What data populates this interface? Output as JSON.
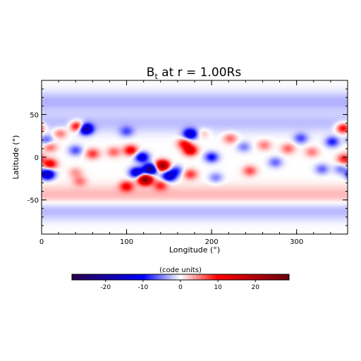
{
  "chart_data": {
    "type": "heatmap",
    "title": {
      "prefix": "B",
      "subscript": "t",
      "suffix": " at r = 1.00Rs"
    },
    "xlabel": "Longitude (°)",
    "ylabel": "Latitude (°)",
    "xlim": [
      0,
      360
    ],
    "ylim": [
      -90,
      90
    ],
    "xticks": [
      0,
      100,
      200,
      300
    ],
    "yticks": [
      -50,
      0,
      50
    ],
    "colorbar": {
      "label": "(code units)",
      "range": [
        -29,
        29
      ],
      "ticks": [
        -20,
        -10,
        0,
        10,
        20
      ],
      "colors": [
        "#2a004a",
        "#0000ff",
        "#ffffff",
        "#ff0000",
        "#6a0010"
      ]
    },
    "blobs": [
      {
        "lon": 42,
        "lat": 36,
        "value": 14
      },
      {
        "lon": 52,
        "lat": 33,
        "value": -20
      },
      {
        "lon": 22,
        "lat": 28,
        "value": 6
      },
      {
        "lon": 6,
        "lat": 20,
        "value": -6
      },
      {
        "lon": 10,
        "lat": 12,
        "value": 6
      },
      {
        "lon": 40,
        "lat": 8,
        "value": -7
      },
      {
        "lon": 60,
        "lat": 4,
        "value": 8
      },
      {
        "lon": 85,
        "lat": 6,
        "value": 6
      },
      {
        "lon": 10,
        "lat": -8,
        "value": 12
      },
      {
        "lon": 7,
        "lat": -20,
        "value": -18
      },
      {
        "lon": 40,
        "lat": -18,
        "value": 4
      },
      {
        "lon": 45,
        "lat": -28,
        "value": 5
      },
      {
        "lon": 100,
        "lat": 30,
        "value": -6
      },
      {
        "lon": 105,
        "lat": 8,
        "value": 12
      },
      {
        "lon": 118,
        "lat": 0,
        "value": -14
      },
      {
        "lon": 112,
        "lat": -18,
        "value": -16
      },
      {
        "lon": 128,
        "lat": -14,
        "value": -24
      },
      {
        "lon": 142,
        "lat": -10,
        "value": 24
      },
      {
        "lon": 122,
        "lat": -26,
        "value": 26
      },
      {
        "lon": 150,
        "lat": -22,
        "value": -16
      },
      {
        "lon": 100,
        "lat": -34,
        "value": 10
      },
      {
        "lon": 140,
        "lat": -33,
        "value": 8
      },
      {
        "lon": 168,
        "lat": 16,
        "value": 10
      },
      {
        "lon": 175,
        "lat": 27,
        "value": -16
      },
      {
        "lon": 175,
        "lat": 8,
        "value": 14
      },
      {
        "lon": 158,
        "lat": -16,
        "value": -8
      },
      {
        "lon": 175,
        "lat": -20,
        "value": 8
      },
      {
        "lon": 190,
        "lat": 28,
        "value": 3
      },
      {
        "lon": 200,
        "lat": 0,
        "value": -10
      },
      {
        "lon": 205,
        "lat": -24,
        "value": -5
      },
      {
        "lon": 222,
        "lat": 22,
        "value": 6
      },
      {
        "lon": 238,
        "lat": 12,
        "value": -5
      },
      {
        "lon": 245,
        "lat": -16,
        "value": 7
      },
      {
        "lon": 262,
        "lat": 14,
        "value": 5
      },
      {
        "lon": 275,
        "lat": -6,
        "value": -6
      },
      {
        "lon": 290,
        "lat": 10,
        "value": 6
      },
      {
        "lon": 305,
        "lat": 22,
        "value": -7
      },
      {
        "lon": 318,
        "lat": 6,
        "value": 5
      },
      {
        "lon": 330,
        "lat": -14,
        "value": -6
      },
      {
        "lon": 342,
        "lat": 18,
        "value": -9
      },
      {
        "lon": 355,
        "lat": 34,
        "value": 12
      },
      {
        "lon": 356,
        "lat": -2,
        "value": 9
      },
      {
        "lon": 352,
        "lat": -14,
        "value": -5
      }
    ],
    "background": [
      {
        "lat": 65,
        "value": -3
      },
      {
        "lat": -62,
        "value": -3
      },
      {
        "lat": -45,
        "value": 3
      },
      {
        "lat": 40,
        "value": -2.5
      }
    ]
  }
}
